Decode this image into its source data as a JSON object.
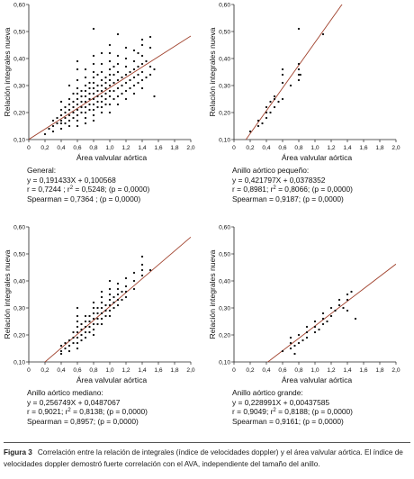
{
  "charts": [
    {
      "xlabel": "Área valvular aórtica",
      "ylabel": "Relación integrales nueva",
      "stats": {
        "line1": "General:",
        "line2": "y = 0,191433X + 0,100568",
        "line3a": "r = 0,7244 ; r",
        "line3sup": "2",
        "line3b": " = 0,5248; (p = 0,0000)",
        "line4": "Spearman = 0,7364 ; (p = 0,0000)"
      }
    },
    {
      "xlabel": "Área valvular aórtica",
      "ylabel": "Relación integrales nueva",
      "stats": {
        "line1": "Anillo aórtico pequeño:",
        "line2": "y = 0,421797X + 0,0378352",
        "line3a": "r = 0,8981; r",
        "line3sup": "2",
        "line3b": " = 0,8066; (p = 0,0000)",
        "line4": "Spearman = 0,9187; (p = 0,0000)"
      }
    },
    {
      "xlabel": "Área valvular aórtica",
      "ylabel": "Relación integrales nueva",
      "stats": {
        "line1": "Anillo aórtico mediano:",
        "line2": "y = 0,256749X + 0,0487067",
        "line3a": "r = 0,9021; r",
        "line3sup": "2",
        "line3b": " = 0,8138; (p = 0,0000)",
        "line4": "Spearman = 0,8957; (p = 0,0000)"
      }
    },
    {
      "xlabel": "Área valvular aórtica",
      "ylabel": "Relación integrales nueva",
      "stats": {
        "line1": "Anillo aórtico grande:",
        "line2": "y = 0,228991X + 0,00437585",
        "line3a": "r = 0,9049; r",
        "line3sup": "2",
        "line3b": " = 0,8188; (p = 0,0000)",
        "line4": "Spearman = 0,9161; (p = 0,0000)"
      }
    }
  ],
  "caption": {
    "label": "Figura 3",
    "text": "Correlación entre la relación de integrales (índice de velocidades doppler) y el área valvular aórtica. El índice de velocidades doppler demostró fuerte correlación con el AVA, independiente del tamaño del anillo."
  },
  "chart_data": [
    {
      "type": "scatter",
      "xlabel": "Área valvular aórtica",
      "ylabel": "Relación integrales nueva",
      "xlim": [
        0,
        2.0
      ],
      "ylim": [
        0.1,
        0.6
      ],
      "xticks": [
        "0",
        "0,2",
        "0,4",
        "0,6",
        "0,8",
        "1,0",
        "1,2",
        "1,4",
        "1,6",
        "1,8",
        "2,0"
      ],
      "yticks": [
        "0,10",
        "0,20",
        "0,30",
        "0,40",
        "0,50",
        "0,60"
      ],
      "fit": {
        "slope": 0.191433,
        "intercept": 0.100568
      },
      "points": [
        [
          0.2,
          0.12
        ],
        [
          0.25,
          0.14
        ],
        [
          0.3,
          0.15
        ],
        [
          0.3,
          0.17
        ],
        [
          0.3,
          0.13
        ],
        [
          0.35,
          0.16
        ],
        [
          0.35,
          0.18
        ],
        [
          0.4,
          0.14
        ],
        [
          0.4,
          0.17
        ],
        [
          0.4,
          0.19
        ],
        [
          0.4,
          0.21
        ],
        [
          0.4,
          0.24
        ],
        [
          0.4,
          0.16
        ],
        [
          0.45,
          0.18
        ],
        [
          0.45,
          0.2
        ],
        [
          0.45,
          0.22
        ],
        [
          0.45,
          0.16
        ],
        [
          0.5,
          0.15
        ],
        [
          0.5,
          0.17
        ],
        [
          0.5,
          0.19
        ],
        [
          0.5,
          0.21
        ],
        [
          0.5,
          0.23
        ],
        [
          0.5,
          0.25
        ],
        [
          0.5,
          0.3
        ],
        [
          0.55,
          0.18
        ],
        [
          0.55,
          0.2
        ],
        [
          0.55,
          0.22
        ],
        [
          0.55,
          0.24
        ],
        [
          0.55,
          0.27
        ],
        [
          0.6,
          0.15
        ],
        [
          0.6,
          0.17
        ],
        [
          0.6,
          0.19
        ],
        [
          0.6,
          0.21
        ],
        [
          0.6,
          0.23
        ],
        [
          0.6,
          0.25
        ],
        [
          0.6,
          0.27
        ],
        [
          0.6,
          0.29
        ],
        [
          0.6,
          0.32
        ],
        [
          0.6,
          0.36
        ],
        [
          0.6,
          0.39
        ],
        [
          0.65,
          0.2
        ],
        [
          0.65,
          0.22
        ],
        [
          0.65,
          0.24
        ],
        [
          0.65,
          0.26
        ],
        [
          0.65,
          0.28
        ],
        [
          0.7,
          0.16
        ],
        [
          0.7,
          0.18
        ],
        [
          0.7,
          0.2
        ],
        [
          0.7,
          0.22
        ],
        [
          0.7,
          0.24
        ],
        [
          0.7,
          0.26
        ],
        [
          0.7,
          0.28
        ],
        [
          0.7,
          0.3
        ],
        [
          0.7,
          0.33
        ],
        [
          0.7,
          0.36
        ],
        [
          0.75,
          0.21
        ],
        [
          0.75,
          0.23
        ],
        [
          0.75,
          0.25
        ],
        [
          0.75,
          0.27
        ],
        [
          0.75,
          0.29
        ],
        [
          0.75,
          0.31
        ],
        [
          0.8,
          0.17
        ],
        [
          0.8,
          0.19
        ],
        [
          0.8,
          0.21
        ],
        [
          0.8,
          0.23
        ],
        [
          0.8,
          0.25
        ],
        [
          0.8,
          0.27
        ],
        [
          0.8,
          0.29
        ],
        [
          0.8,
          0.31
        ],
        [
          0.8,
          0.33
        ],
        [
          0.8,
          0.35
        ],
        [
          0.8,
          0.38
        ],
        [
          0.8,
          0.41
        ],
        [
          0.8,
          0.51
        ],
        [
          0.85,
          0.22
        ],
        [
          0.85,
          0.24
        ],
        [
          0.85,
          0.26
        ],
        [
          0.85,
          0.28
        ],
        [
          0.85,
          0.3
        ],
        [
          0.85,
          0.34
        ],
        [
          0.9,
          0.2
        ],
        [
          0.9,
          0.22
        ],
        [
          0.9,
          0.24
        ],
        [
          0.9,
          0.26
        ],
        [
          0.9,
          0.28
        ],
        [
          0.9,
          0.3
        ],
        [
          0.9,
          0.32
        ],
        [
          0.9,
          0.35
        ],
        [
          0.9,
          0.38
        ],
        [
          0.9,
          0.42
        ],
        [
          0.95,
          0.23
        ],
        [
          0.95,
          0.25
        ],
        [
          0.95,
          0.27
        ],
        [
          0.95,
          0.29
        ],
        [
          0.95,
          0.31
        ],
        [
          0.95,
          0.33
        ],
        [
          1.0,
          0.2
        ],
        [
          1.0,
          0.23
        ],
        [
          1.0,
          0.26
        ],
        [
          1.0,
          0.28
        ],
        [
          1.0,
          0.3
        ],
        [
          1.0,
          0.32
        ],
        [
          1.0,
          0.34
        ],
        [
          1.0,
          0.36
        ],
        [
          1.0,
          0.39
        ],
        [
          1.0,
          0.42
        ],
        [
          1.0,
          0.45
        ],
        [
          1.05,
          0.25
        ],
        [
          1.05,
          0.28
        ],
        [
          1.05,
          0.31
        ],
        [
          1.05,
          0.34
        ],
        [
          1.05,
          0.37
        ],
        [
          1.1,
          0.23
        ],
        [
          1.1,
          0.26
        ],
        [
          1.1,
          0.29
        ],
        [
          1.1,
          0.32
        ],
        [
          1.1,
          0.35
        ],
        [
          1.1,
          0.38
        ],
        [
          1.1,
          0.41
        ],
        [
          1.1,
          0.49
        ],
        [
          1.15,
          0.27
        ],
        [
          1.15,
          0.3
        ],
        [
          1.15,
          0.33
        ],
        [
          1.2,
          0.25
        ],
        [
          1.2,
          0.28
        ],
        [
          1.2,
          0.31
        ],
        [
          1.2,
          0.34
        ],
        [
          1.2,
          0.37
        ],
        [
          1.2,
          0.4
        ],
        [
          1.2,
          0.44
        ],
        [
          1.25,
          0.29
        ],
        [
          1.25,
          0.32
        ],
        [
          1.25,
          0.35
        ],
        [
          1.3,
          0.27
        ],
        [
          1.3,
          0.3
        ],
        [
          1.3,
          0.33
        ],
        [
          1.3,
          0.36
        ],
        [
          1.3,
          0.39
        ],
        [
          1.3,
          0.43
        ],
        [
          1.35,
          0.31
        ],
        [
          1.35,
          0.34
        ],
        [
          1.35,
          0.37
        ],
        [
          1.35,
          0.42
        ],
        [
          1.4,
          0.29
        ],
        [
          1.4,
          0.32
        ],
        [
          1.4,
          0.35
        ],
        [
          1.4,
          0.38
        ],
        [
          1.4,
          0.41
        ],
        [
          1.4,
          0.45
        ],
        [
          1.4,
          0.47
        ],
        [
          1.45,
          0.33
        ],
        [
          1.45,
          0.39
        ],
        [
          1.5,
          0.34
        ],
        [
          1.5,
          0.37
        ],
        [
          1.5,
          0.44
        ],
        [
          1.5,
          0.48
        ],
        [
          1.55,
          0.26
        ],
        [
          1.55,
          0.36
        ]
      ]
    },
    {
      "type": "scatter",
      "xlabel": "Área valvular aórtica",
      "ylabel": "Relación integrales nueva",
      "xlim": [
        0,
        2.0
      ],
      "ylim": [
        0.1,
        0.6
      ],
      "xticks": [
        "0",
        "0,2",
        "0,4",
        "0,6",
        "0,8",
        "1,0",
        "1,2",
        "1,4",
        "1,6",
        "1,8",
        "2,0"
      ],
      "yticks": [
        "0,10",
        "0,20",
        "0,30",
        "0,40",
        "0,50",
        "0,60"
      ],
      "fit": {
        "slope": 0.421797,
        "intercept": 0.0378352
      },
      "points": [
        [
          0.2,
          0.13
        ],
        [
          0.3,
          0.15
        ],
        [
          0.3,
          0.17
        ],
        [
          0.35,
          0.16
        ],
        [
          0.4,
          0.18
        ],
        [
          0.4,
          0.2
        ],
        [
          0.4,
          0.22
        ],
        [
          0.45,
          0.2
        ],
        [
          0.45,
          0.24
        ],
        [
          0.5,
          0.22
        ],
        [
          0.5,
          0.25
        ],
        [
          0.5,
          0.26
        ],
        [
          0.55,
          0.24
        ],
        [
          0.6,
          0.25
        ],
        [
          0.6,
          0.31
        ],
        [
          0.6,
          0.34
        ],
        [
          0.6,
          0.36
        ],
        [
          0.7,
          0.3
        ],
        [
          0.8,
          0.32
        ],
        [
          0.8,
          0.34
        ],
        [
          0.8,
          0.36
        ],
        [
          0.8,
          0.38
        ],
        [
          0.8,
          0.51
        ],
        [
          0.82,
          0.34
        ],
        [
          1.1,
          0.49
        ]
      ]
    },
    {
      "type": "scatter",
      "xlabel": "Área valvular aórtica",
      "ylabel": "Relación integrales nueva",
      "xlim": [
        0,
        2.0
      ],
      "ylim": [
        0.1,
        0.6
      ],
      "xticks": [
        "0",
        "0,2",
        "0,4",
        "0,6",
        "0,8",
        "1,0",
        "1,2",
        "1,4",
        "1,6",
        "1,8",
        "2,0"
      ],
      "yticks": [
        "0,10",
        "0,20",
        "0,30",
        "0,40",
        "0,50",
        "0,60"
      ],
      "fit": {
        "slope": 0.256749,
        "intercept": 0.0487067
      },
      "points": [
        [
          0.4,
          0.13
        ],
        [
          0.4,
          0.14
        ],
        [
          0.4,
          0.16
        ],
        [
          0.45,
          0.15
        ],
        [
          0.45,
          0.17
        ],
        [
          0.5,
          0.14
        ],
        [
          0.5,
          0.16
        ],
        [
          0.5,
          0.18
        ],
        [
          0.55,
          0.17
        ],
        [
          0.55,
          0.19
        ],
        [
          0.55,
          0.21
        ],
        [
          0.6,
          0.15
        ],
        [
          0.6,
          0.17
        ],
        [
          0.6,
          0.19
        ],
        [
          0.6,
          0.21
        ],
        [
          0.6,
          0.23
        ],
        [
          0.6,
          0.25
        ],
        [
          0.6,
          0.27
        ],
        [
          0.6,
          0.3
        ],
        [
          0.65,
          0.18
        ],
        [
          0.65,
          0.2
        ],
        [
          0.65,
          0.22
        ],
        [
          0.65,
          0.24
        ],
        [
          0.7,
          0.19
        ],
        [
          0.7,
          0.21
        ],
        [
          0.7,
          0.23
        ],
        [
          0.7,
          0.25
        ],
        [
          0.7,
          0.27
        ],
        [
          0.75,
          0.21
        ],
        [
          0.75,
          0.23
        ],
        [
          0.75,
          0.25
        ],
        [
          0.75,
          0.27
        ],
        [
          0.8,
          0.2
        ],
        [
          0.8,
          0.22
        ],
        [
          0.8,
          0.24
        ],
        [
          0.8,
          0.26
        ],
        [
          0.8,
          0.28
        ],
        [
          0.8,
          0.3
        ],
        [
          0.8,
          0.32
        ],
        [
          0.85,
          0.24
        ],
        [
          0.85,
          0.26
        ],
        [
          0.85,
          0.28
        ],
        [
          0.85,
          0.3
        ],
        [
          0.9,
          0.24
        ],
        [
          0.9,
          0.26
        ],
        [
          0.9,
          0.28
        ],
        [
          0.9,
          0.3
        ],
        [
          0.9,
          0.32
        ],
        [
          0.9,
          0.34
        ],
        [
          0.9,
          0.36
        ],
        [
          0.95,
          0.27
        ],
        [
          0.95,
          0.29
        ],
        [
          0.95,
          0.31
        ],
        [
          1.0,
          0.27
        ],
        [
          1.0,
          0.29
        ],
        [
          1.0,
          0.31
        ],
        [
          1.0,
          0.33
        ],
        [
          1.0,
          0.35
        ],
        [
          1.0,
          0.37
        ],
        [
          1.0,
          0.4
        ],
        [
          1.05,
          0.3
        ],
        [
          1.05,
          0.32
        ],
        [
          1.05,
          0.34
        ],
        [
          1.1,
          0.31
        ],
        [
          1.1,
          0.33
        ],
        [
          1.1,
          0.35
        ],
        [
          1.1,
          0.37
        ],
        [
          1.1,
          0.39
        ],
        [
          1.15,
          0.33
        ],
        [
          1.15,
          0.36
        ],
        [
          1.2,
          0.34
        ],
        [
          1.2,
          0.36
        ],
        [
          1.2,
          0.38
        ],
        [
          1.2,
          0.41
        ],
        [
          1.3,
          0.37
        ],
        [
          1.3,
          0.4
        ],
        [
          1.3,
          0.43
        ],
        [
          1.4,
          0.42
        ],
        [
          1.4,
          0.44
        ],
        [
          1.4,
          0.46
        ],
        [
          1.4,
          0.49
        ],
        [
          1.5,
          0.44
        ]
      ]
    },
    {
      "type": "scatter",
      "xlabel": "Área valvular aórtica",
      "ylabel": "Relación integrales nueva",
      "xlim": [
        0,
        2.0
      ],
      "ylim": [
        0.1,
        0.6
      ],
      "xticks": [
        "0",
        "0,2",
        "0,4",
        "0,6",
        "0,8",
        "1,0",
        "1,2",
        "1,4",
        "1,6",
        "1,8",
        "2,0"
      ],
      "yticks": [
        "0,10",
        "0,20",
        "0,30",
        "0,40",
        "0,50",
        "0,60"
      ],
      "fit": {
        "slope": 0.228991,
        "intercept": 0.00437585
      },
      "points": [
        [
          0.6,
          0.14
        ],
        [
          0.7,
          0.15
        ],
        [
          0.7,
          0.17
        ],
        [
          0.7,
          0.19
        ],
        [
          0.75,
          0.13
        ],
        [
          0.75,
          0.16
        ],
        [
          0.8,
          0.17
        ],
        [
          0.8,
          0.2
        ],
        [
          0.85,
          0.18
        ],
        [
          0.9,
          0.19
        ],
        [
          0.9,
          0.21
        ],
        [
          0.9,
          0.23
        ],
        [
          1.0,
          0.21
        ],
        [
          1.0,
          0.23
        ],
        [
          1.0,
          0.25
        ],
        [
          1.05,
          0.22
        ],
        [
          1.1,
          0.24
        ],
        [
          1.1,
          0.26
        ],
        [
          1.1,
          0.28
        ],
        [
          1.15,
          0.25
        ],
        [
          1.2,
          0.27
        ],
        [
          1.2,
          0.3
        ],
        [
          1.25,
          0.29
        ],
        [
          1.3,
          0.31
        ],
        [
          1.3,
          0.33
        ],
        [
          1.35,
          0.3
        ],
        [
          1.4,
          0.29
        ],
        [
          1.4,
          0.33
        ],
        [
          1.4,
          0.35
        ],
        [
          1.45,
          0.36
        ],
        [
          1.5,
          0.26
        ]
      ]
    }
  ]
}
